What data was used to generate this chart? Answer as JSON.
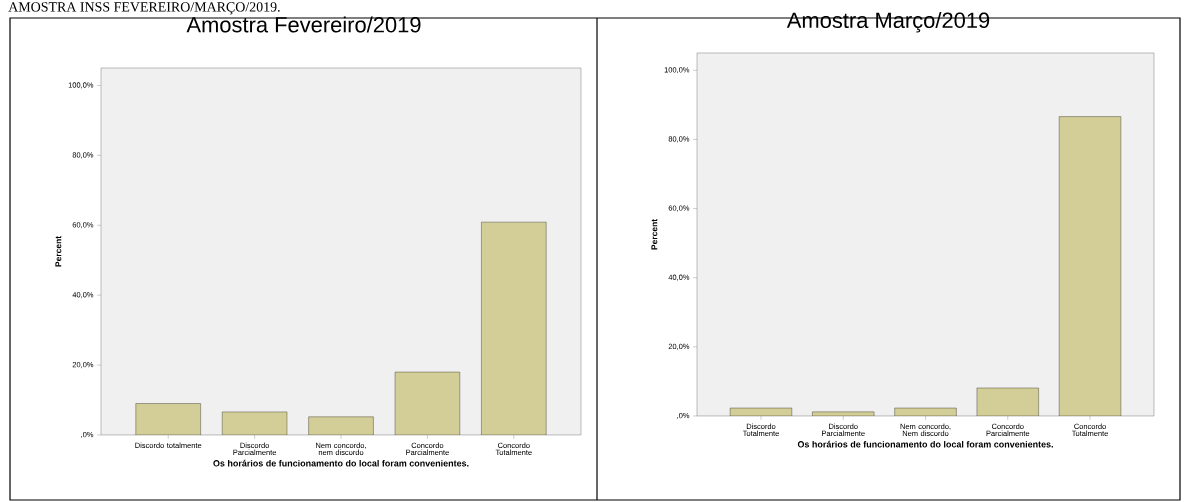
{
  "chart_data": [
    {
      "type": "bar",
      "title": "Amostra Fevereiro/2019",
      "xlabel": "Os horários de funcionamento do local foram convenientes.",
      "ylabel": "Percent",
      "categories": [
        "Discordo totalmente",
        "Discordo Parcialmente",
        "Nem concordo, nem discordo",
        "Concordo Parcialmente",
        "Concordo Totalmente"
      ],
      "values": [
        9.0,
        6.6,
        5.2,
        18.0,
        60.9
      ],
      "color": "#d3ce97",
      "ylim": [
        0,
        105
      ],
      "yticks": [
        {
          "value": 0,
          "label": ",0%"
        },
        {
          "value": 20,
          "label": "20,0%"
        },
        {
          "value": 40,
          "label": "40,0%"
        },
        {
          "value": 60,
          "label": "60,0%"
        },
        {
          "value": 80,
          "label": "80,0%"
        },
        {
          "value": 100,
          "label": "100,0%"
        }
      ],
      "annotations": [
        "AMOSTRA INSS FEVEREIRO/MARÇO/2019."
      ]
    },
    {
      "type": "bar",
      "title": "Amostra Março/2019",
      "xlabel": "Os horários de funcionamento do local foram convenientes.",
      "ylabel": "Percent",
      "categories": [
        "Discordo Totalmente",
        "Discordo Parcialmente",
        "Nem concordo, Nem discordo",
        "Concordo Parcialmente",
        "Concordo Totalmente"
      ],
      "values": [
        2.3,
        1.2,
        2.3,
        8.1,
        86.6
      ],
      "color": "#d3ce97",
      "ylim": [
        0,
        105
      ],
      "yticks": [
        {
          "value": 0,
          "label": ",0%"
        },
        {
          "value": 20,
          "label": "20,0%"
        },
        {
          "value": 40,
          "label": "40,0%"
        },
        {
          "value": 60,
          "label": "60,0%"
        },
        {
          "value": 80,
          "label": "80,0%"
        },
        {
          "value": 100,
          "label": "100,0%"
        }
      ]
    }
  ]
}
